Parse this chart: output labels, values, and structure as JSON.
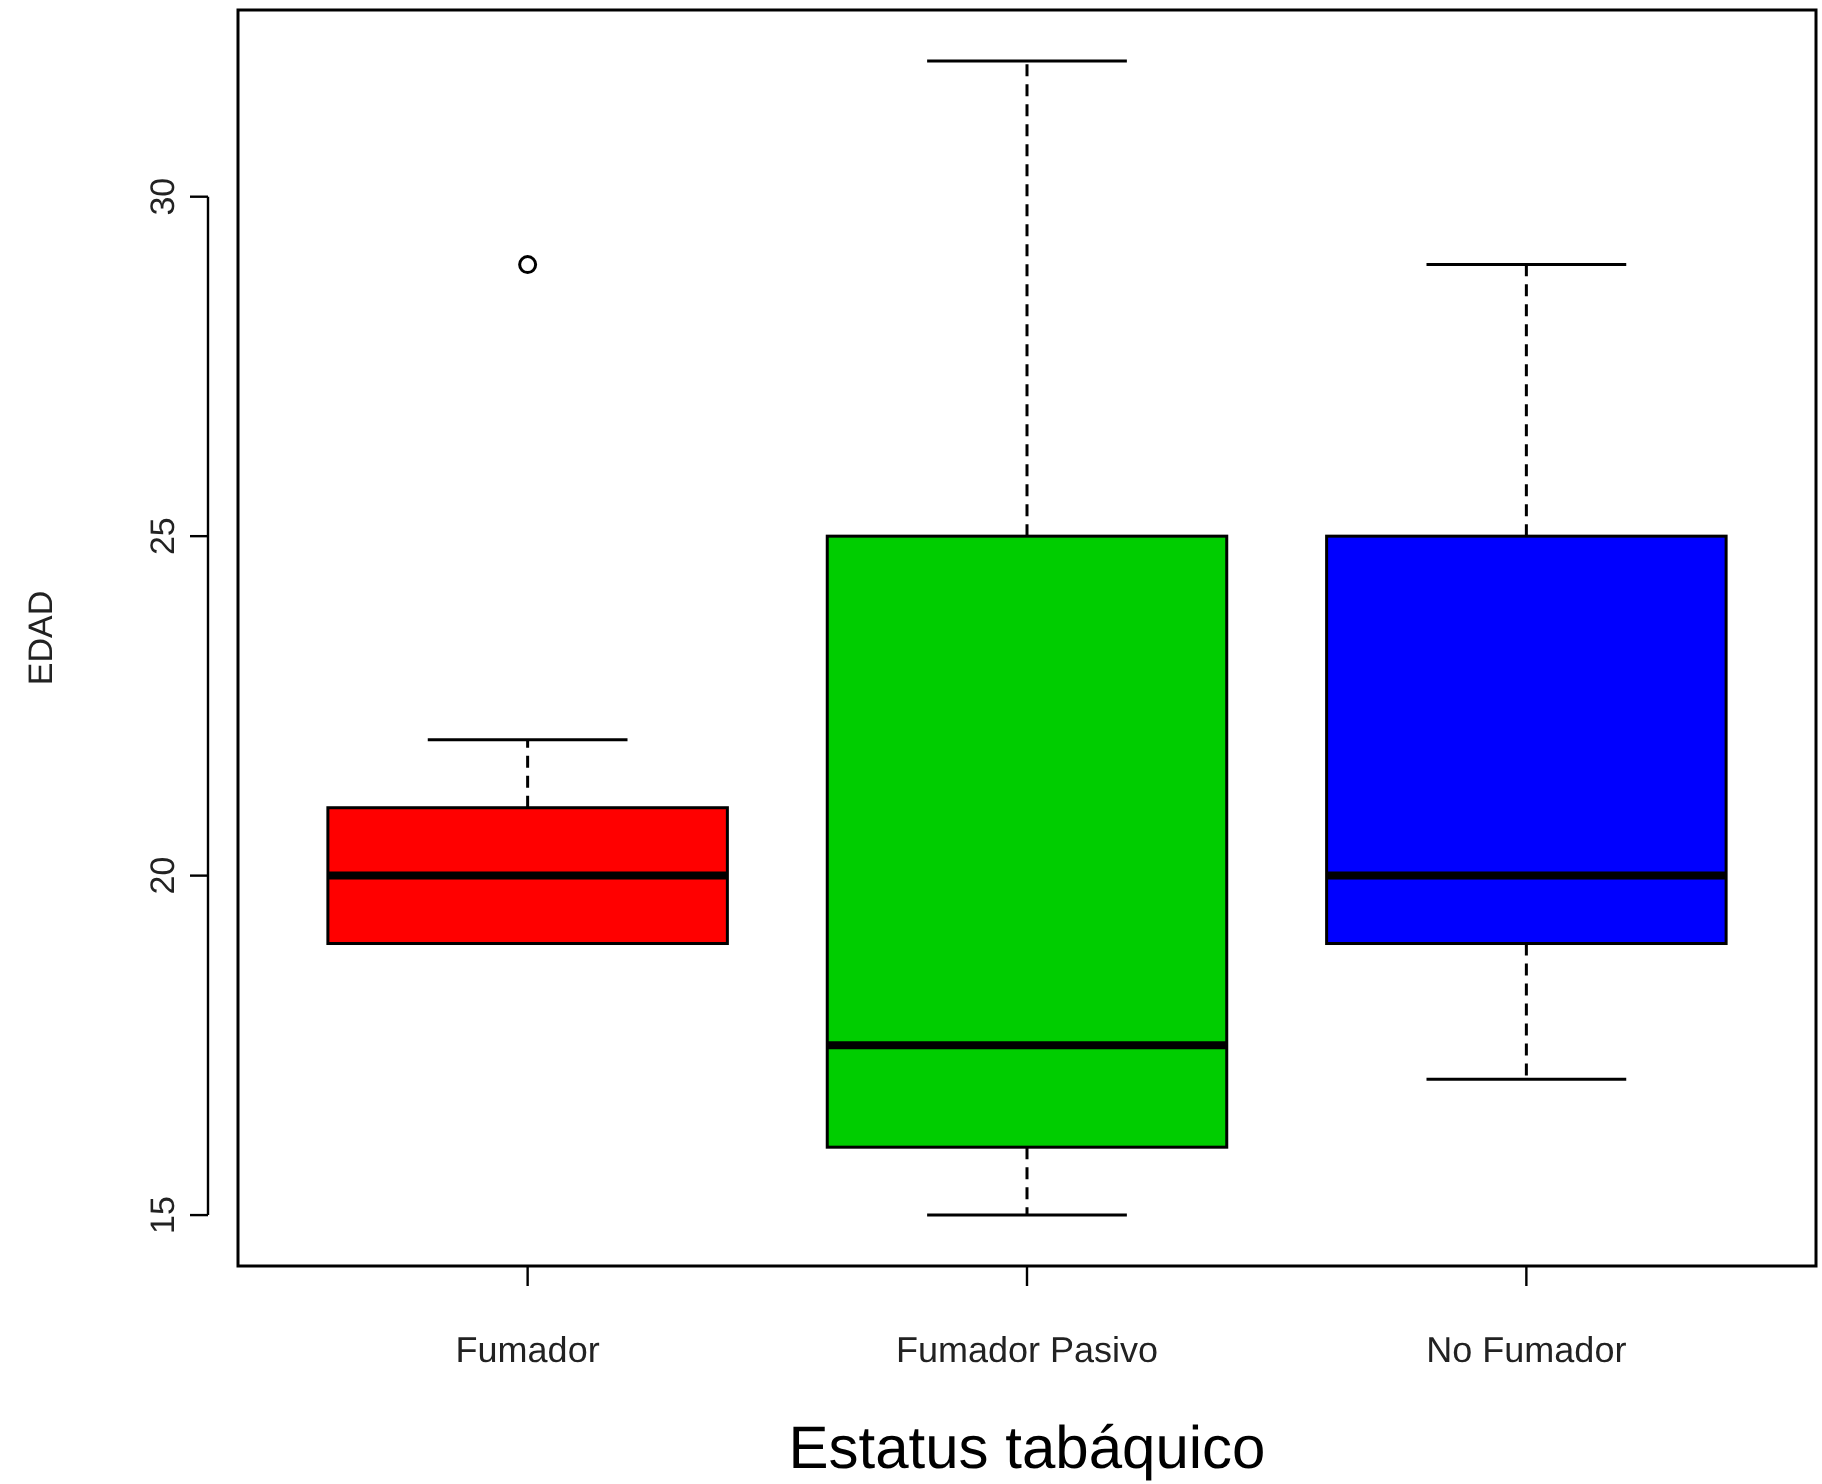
{
  "chart_data": {
    "type": "box",
    "xlabel": "Estatus tabáquico",
    "ylabel": "EDAD",
    "categories": [
      "Fumador",
      "Fumador Pasivo",
      "No Fumador"
    ],
    "colors": [
      "#ff0000",
      "#00cd00",
      "#0000ff"
    ],
    "boxes": [
      {
        "low": 19,
        "q1": 19,
        "median": 20,
        "q3": 21,
        "high": 22,
        "outliers": [
          29
        ]
      },
      {
        "low": 15,
        "q1": 16,
        "median": 17.5,
        "q3": 25,
        "high": 32
      },
      {
        "low": 17,
        "q1": 19,
        "median": 20,
        "q3": 25,
        "high": 29
      }
    ],
    "ylim": [
      14.25,
      32.75
    ],
    "yticks": [
      15,
      20,
      25,
      30
    ],
    "grid": false
  }
}
